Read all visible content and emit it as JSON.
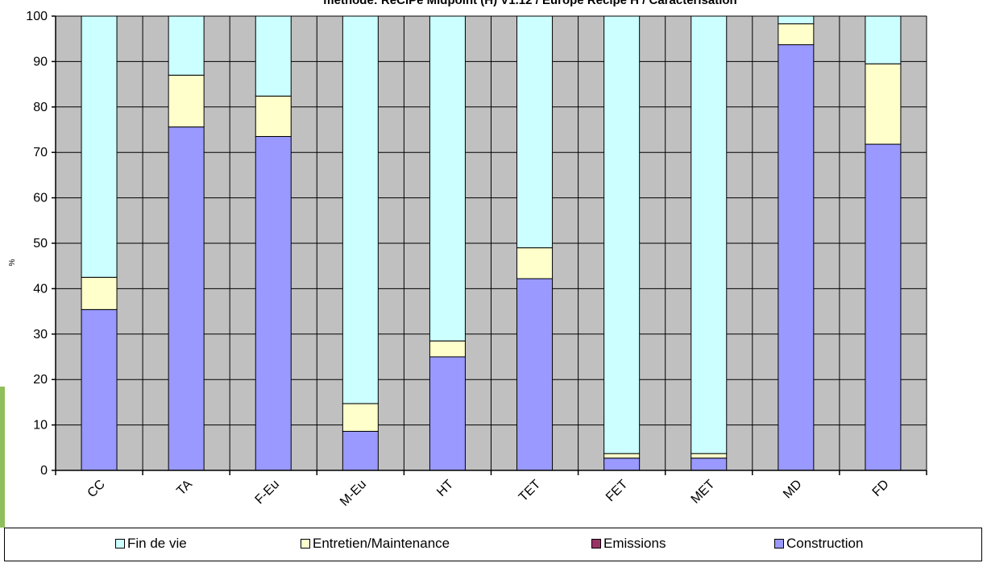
{
  "chart_data": {
    "type": "bar",
    "stacked": true,
    "title": "méthode: ReCiPe Midpoint (H) V1.12 / Europe Recipe H / Caractérisation",
    "xlabel": "",
    "ylabel": "%",
    "ylim": [
      0,
      100
    ],
    "yticks": [
      "0",
      "10",
      "20",
      "30",
      "40",
      "50",
      "60",
      "70",
      "80",
      "90",
      "100"
    ],
    "grid": true,
    "legend_position": "bottom",
    "categories": [
      "CC",
      "TA",
      "F-Eu",
      "M-Eu",
      "HT",
      "TET",
      "FET",
      "MET",
      "MD",
      "FD"
    ],
    "series": [
      {
        "name": "Construction",
        "color": "#9999ff",
        "values": [
          35.4,
          75.6,
          73.5,
          8.6,
          25.0,
          42.2,
          2.7,
          2.7,
          93.7,
          71.8
        ]
      },
      {
        "name": "Emissions",
        "color": "#993366",
        "values": [
          0,
          0,
          0,
          0,
          0,
          0,
          0,
          0,
          0,
          0
        ]
      },
      {
        "name": "Entretien/Maintenance",
        "color": "#ffffcc",
        "values": [
          7.1,
          11.4,
          8.9,
          6.1,
          3.5,
          6.8,
          1.0,
          1.0,
          4.6,
          17.7
        ]
      },
      {
        "name": "Fin de vie",
        "color": "#ccffff",
        "values": [
          57.5,
          13.0,
          17.6,
          85.3,
          71.5,
          51.0,
          96.3,
          96.3,
          1.7,
          10.5
        ]
      }
    ],
    "legend_order": [
      "Fin de vie",
      "Entretien/Maintenance",
      "Emissions",
      "Construction"
    ],
    "plot_background": "#c0c0c0"
  }
}
